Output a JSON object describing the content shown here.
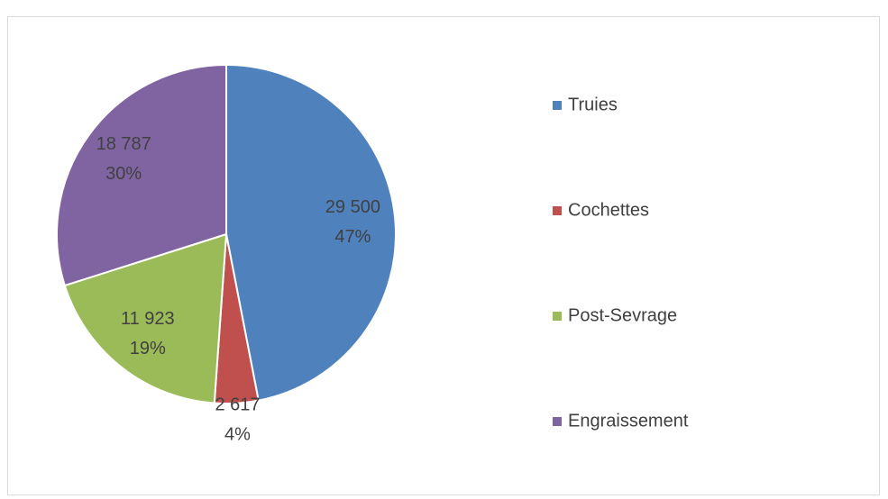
{
  "chart_data": {
    "type": "pie",
    "categories": [
      "Truies",
      "Cochettes",
      "Post-Sevrage",
      "Engraissement"
    ],
    "values": [
      29500,
      2617,
      11923,
      18787
    ],
    "value_labels": [
      "29 500",
      "2 617",
      "11 923",
      "18 787"
    ],
    "percent_labels": [
      "47%",
      "4%",
      "19%",
      "30%"
    ],
    "colors": [
      "#4f81bd",
      "#c0504d",
      "#9bbb59",
      "#8064a2"
    ],
    "legend": "right"
  }
}
